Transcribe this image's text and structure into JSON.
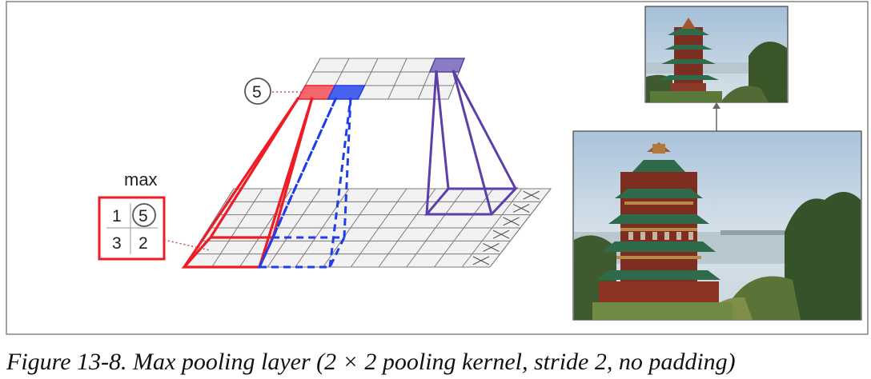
{
  "diagram": {
    "max_label": "max",
    "kernel_values": [
      "1",
      "5",
      "3",
      "2"
    ],
    "output_value": "5",
    "colors": {
      "red": "#ee1c25",
      "red_fill": "#f4676f",
      "blue": "#1f3dea",
      "blue_fill": "#4a63ee",
      "purple": "#5c3fa8",
      "purple_fill": "#8a7cc4",
      "grid": "#7a7a7a",
      "grid_fill": "#f2f2f2",
      "frame": "#555555"
    },
    "input_grid": {
      "rows": 6,
      "cols": 11
    },
    "output_grid": {
      "rows": 3,
      "cols": 5
    },
    "padding_cells_marked": 5
  },
  "photos": {
    "large_alt": "Pagoda photo (input)",
    "small_alt": "Pagoda photo (pooled output)"
  },
  "caption": "Figure 13-8. Max pooling layer (2 × 2 pooling kernel, stride 2, no padding)"
}
